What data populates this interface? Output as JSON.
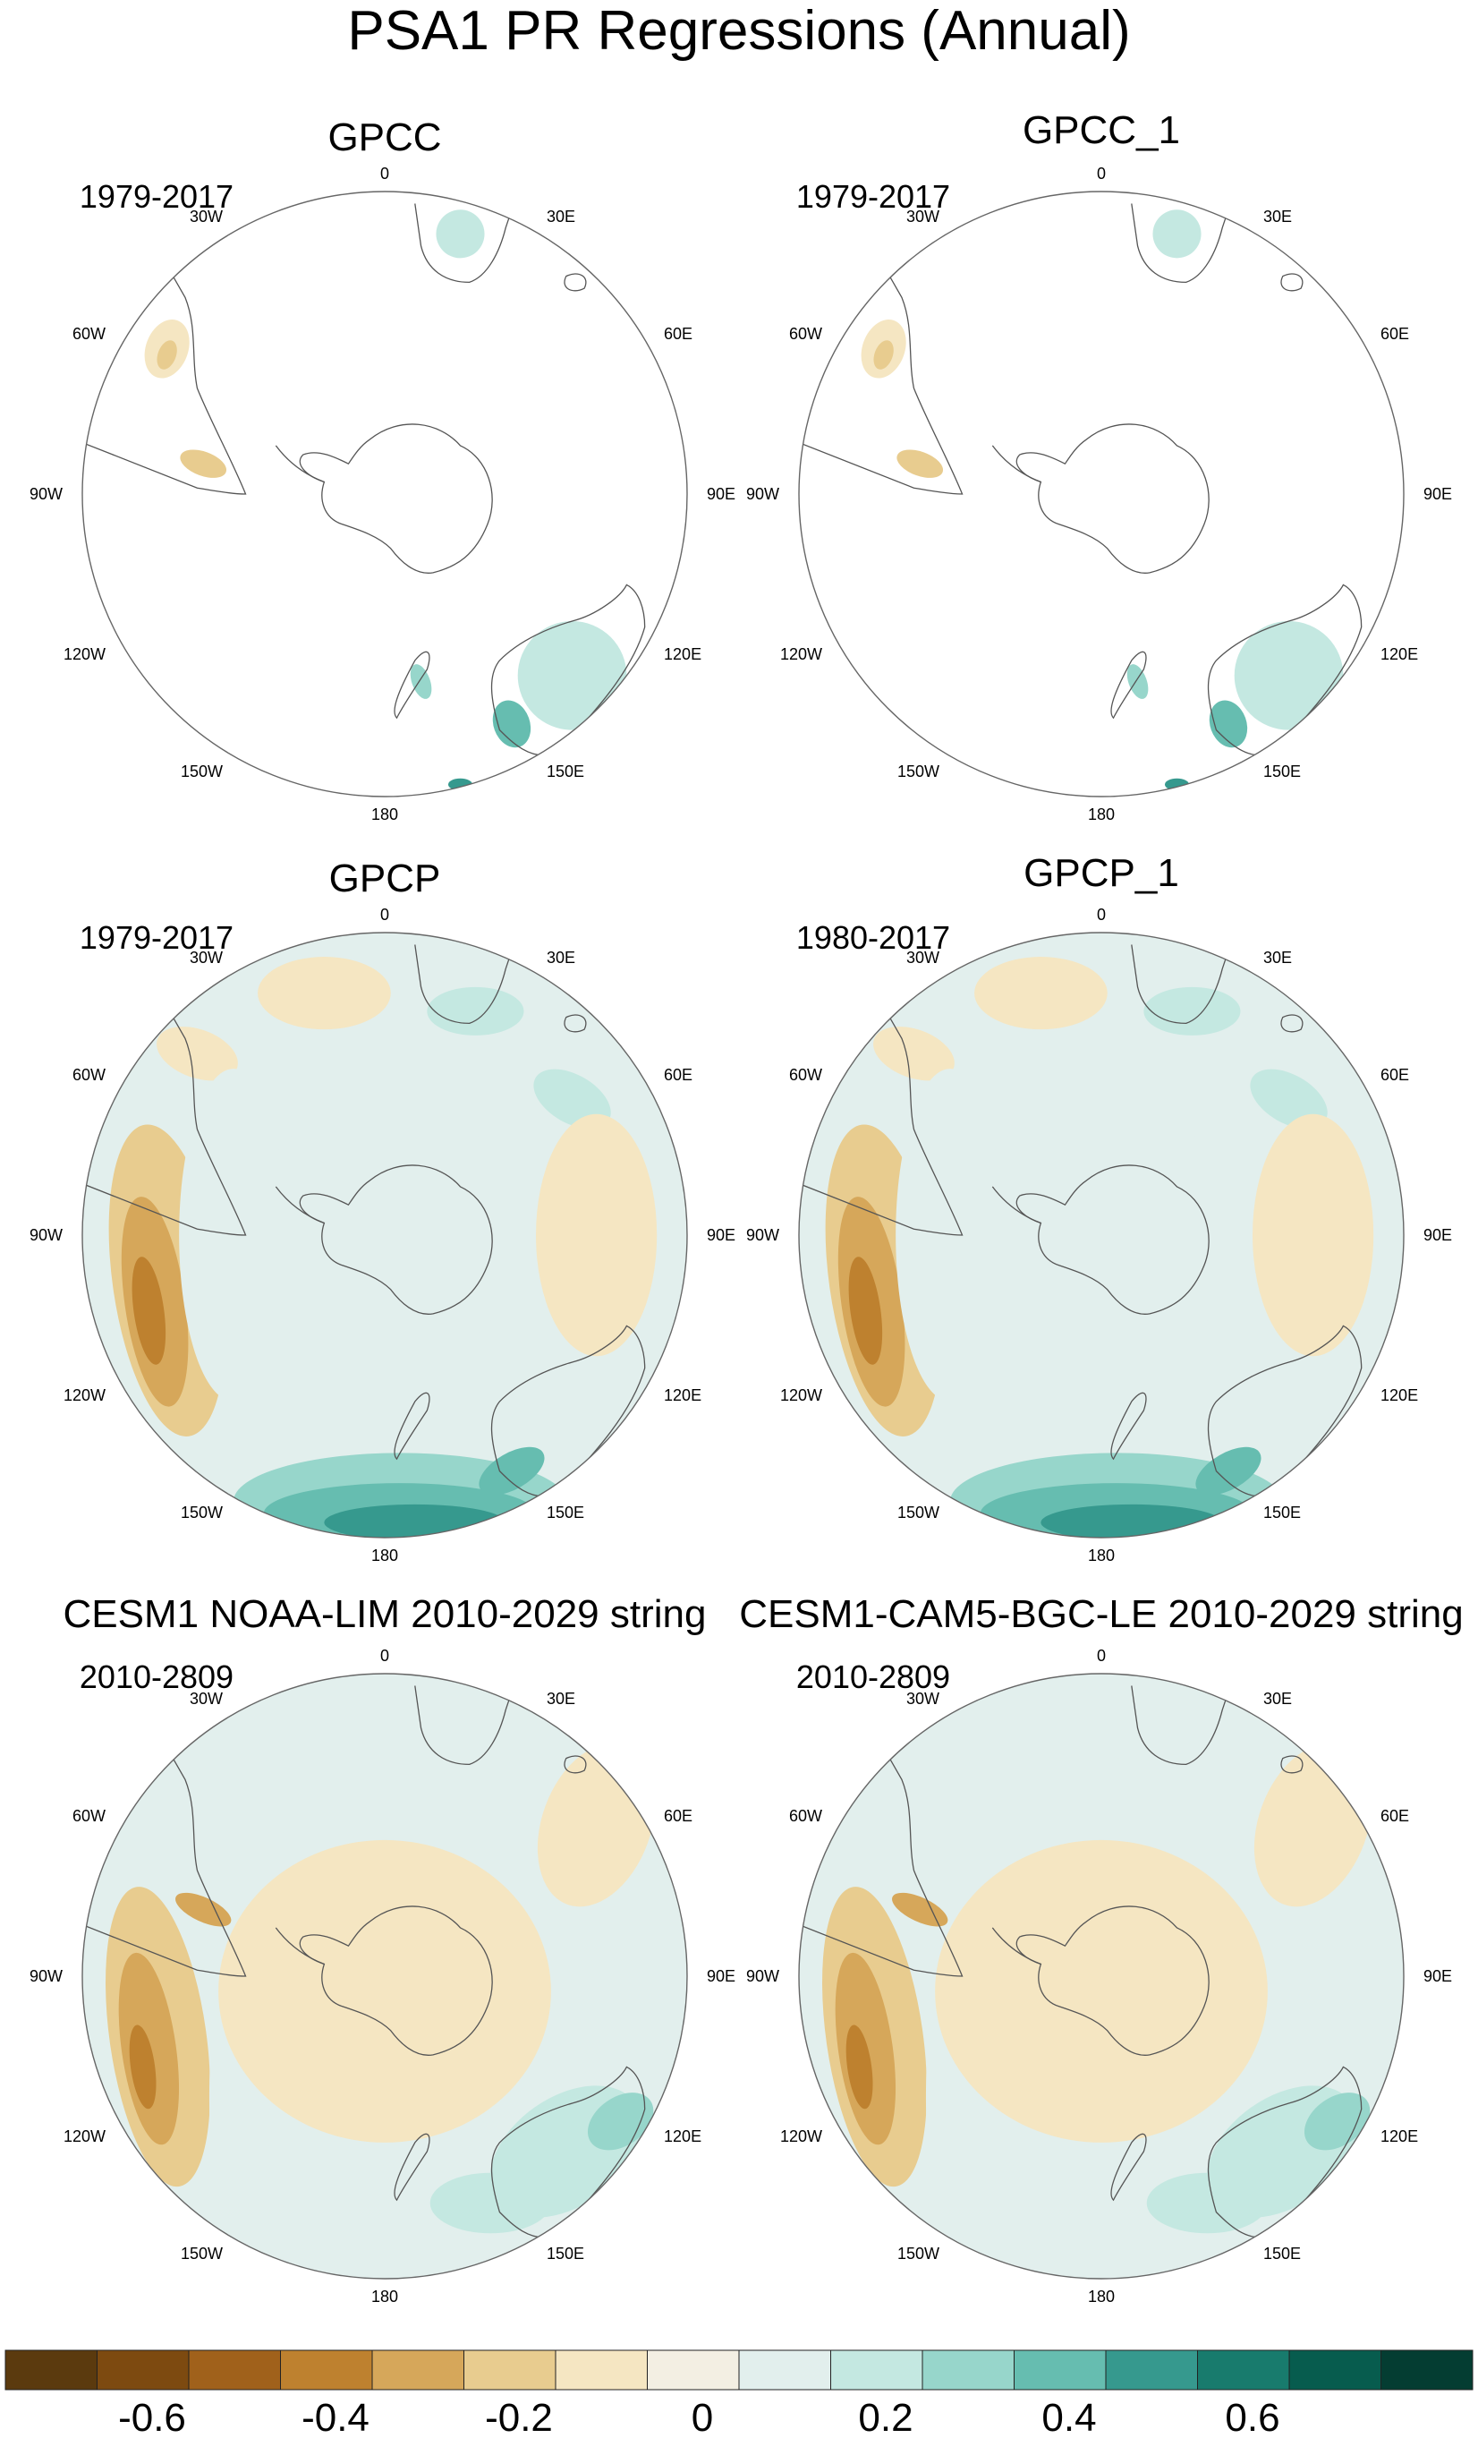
{
  "figure": {
    "title": "PSA1 PR Regressions (Annual)"
  },
  "panels": [
    {
      "id": "gpcc",
      "title": "GPCC",
      "period": "1979-2017",
      "coverage": "land"
    },
    {
      "id": "gpcc-1",
      "title": "GPCC_1",
      "period": "1979-2017",
      "coverage": "land"
    },
    {
      "id": "gpcp",
      "title": "GPCP",
      "period": "1979-2017",
      "coverage": "full"
    },
    {
      "id": "gpcp-1",
      "title": "GPCP_1",
      "period": "1980-2017",
      "coverage": "full"
    },
    {
      "id": "cesm1-noaa-lim",
      "title": "CESM1 NOAA-LIM 2010-2029 string",
      "period": "2010-2809",
      "coverage": "full"
    },
    {
      "id": "cesm1-cam5-bgc-le",
      "title": "CESM1-CAM5-BGC-LE 2010-2029 string",
      "period": "2010-2809",
      "coverage": "full"
    }
  ],
  "map": {
    "projection": "polar-stereographic-south",
    "longitude_labels": [
      "0",
      "30E",
      "60E",
      "90E",
      "120E",
      "150E",
      "180",
      "150W",
      "120W",
      "90W",
      "60W",
      "30W"
    ]
  },
  "colorbar": {
    "colors": [
      "#5b3a0e",
      "#7d4a10",
      "#a0611b",
      "#be812f",
      "#d6a75a",
      "#e8cc8f",
      "#f5e6c2",
      "#f3efe3",
      "#e2efed",
      "#c4e8e1",
      "#97d6cb",
      "#66bdb0",
      "#36998e",
      "#187b6d",
      "#075c4e",
      "#043d32"
    ],
    "tick_labels": [
      "-0.6",
      "-0.4",
      "-0.2",
      "0",
      "0.2",
      "0.4",
      "0.6"
    ]
  }
}
